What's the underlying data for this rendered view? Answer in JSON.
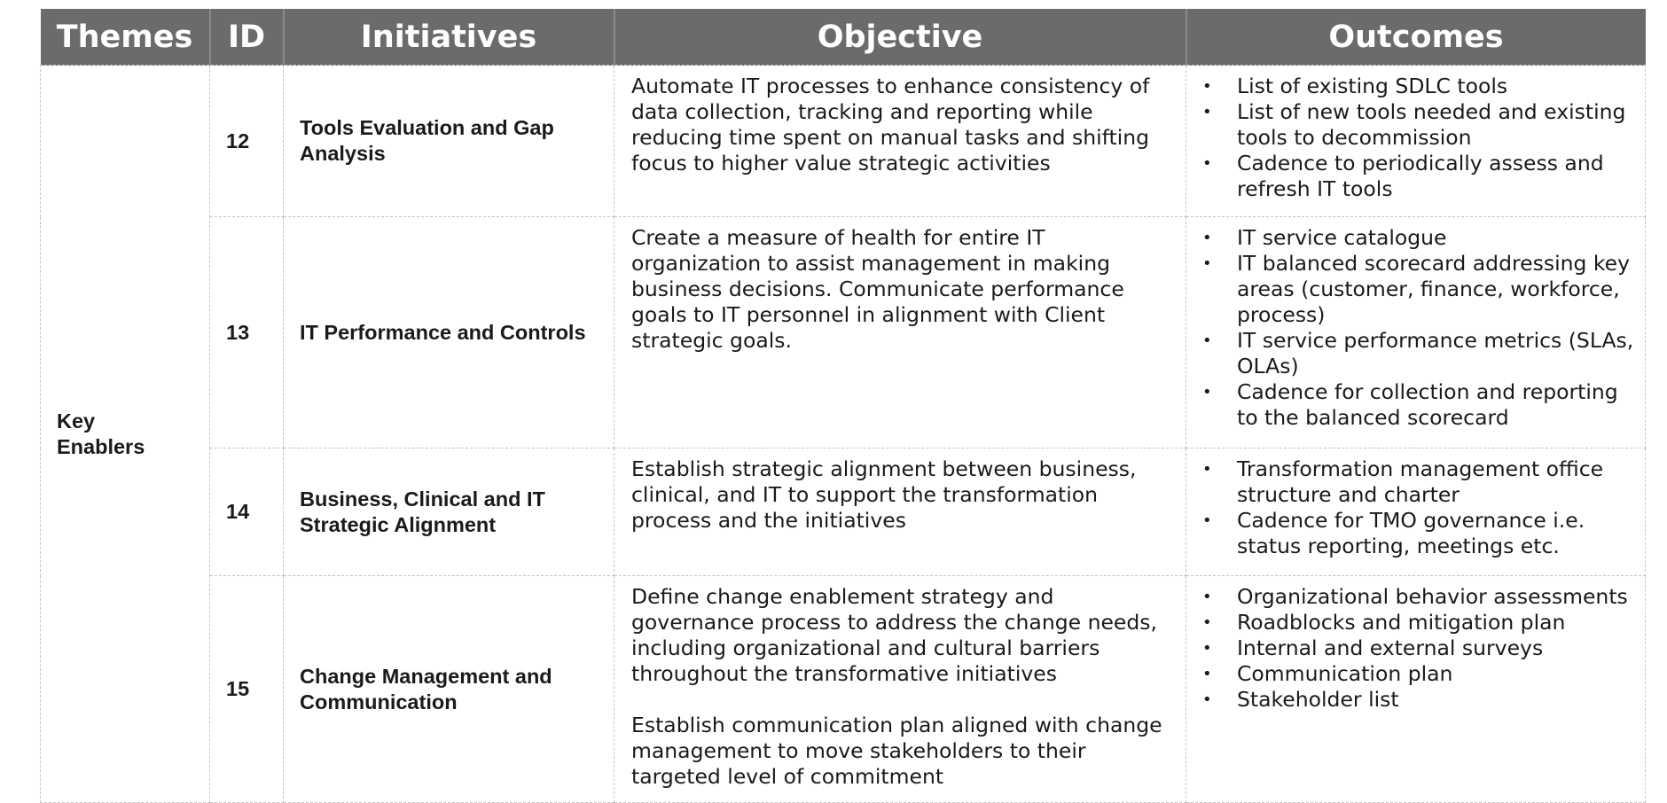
{
  "page_heading_clipped": "",
  "table": {
    "headers": {
      "themes": "Themes",
      "id": "ID",
      "initiatives": "Initiatives",
      "objective": "Objective",
      "outcomes": "Outcomes"
    },
    "theme": "Key Enablers",
    "rows": [
      {
        "id": "12",
        "initiative": "Tools Evaluation and Gap Analysis",
        "objective": [
          "Automate IT processes to enhance consistency of data collection, tracking and reporting while reducing time spent on manual tasks and shifting focus to higher value strategic activities"
        ],
        "outcomes": [
          "List of existing SDLC tools",
          "List of new tools needed and existing tools to decommission",
          "Cadence to periodically assess and refresh IT tools"
        ]
      },
      {
        "id": "13",
        "initiative": "IT Performance and Controls",
        "objective": [
          "Create a measure of health for entire IT organization to assist management in making business decisions. Communicate performance goals to IT personnel in alignment with Client strategic goals."
        ],
        "outcomes": [
          "IT service catalogue",
          "IT balanced scorecard addressing key areas (customer, finance, workforce, process)",
          "IT service performance metrics (SLAs, OLAs)",
          "Cadence for collection and reporting to the balanced scorecard"
        ]
      },
      {
        "id": "14",
        "initiative": "Business, Clinical and IT Strategic Alignment",
        "objective": [
          "Establish strategic alignment between business, clinical, and IT to support the transformation process and the initiatives"
        ],
        "outcomes": [
          "Transformation management office structure and charter",
          "Cadence for TMO governance i.e. status reporting, meetings etc."
        ]
      },
      {
        "id": "15",
        "initiative": "Change Management and Communication",
        "objective": [
          "Define change enablement strategy and governance process to address the change needs, including organizational and cultural barriers throughout the transformative initiatives",
          "Establish communication plan aligned with change management to move stakeholders to their targeted level of commitment"
        ],
        "outcomes": [
          "Organizational behavior assessments",
          "Roadblocks and mitigation plan",
          "Internal and external surveys",
          "Communication plan",
          "Stakeholder list"
        ]
      }
    ],
    "bullet_glyph": "•"
  },
  "colors": {
    "header_bg": "#6b6b6b",
    "header_text": "#ffffff",
    "border": "#c4c4c4",
    "body_text": "#1a1a1a"
  }
}
